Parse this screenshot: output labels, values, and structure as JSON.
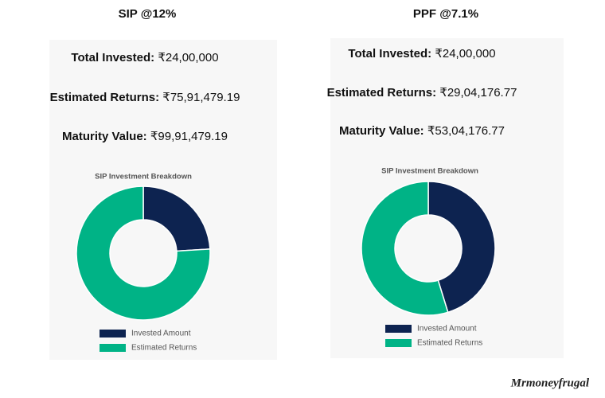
{
  "chart_data": [
    {
      "type": "donut",
      "heading": "SIP @12%",
      "stats": [
        {
          "label": "Total Invested:",
          "value": "₹24,00,000"
        },
        {
          "label": "Estimated Returns:",
          "value": "₹75,91,479.19"
        },
        {
          "label": "Maturity Value:",
          "value": "₹99,91,479.19"
        }
      ],
      "title": "SIP Investment Breakdown",
      "categories": [
        "Invested Amount",
        "Estimated Returns"
      ],
      "values": [
        2400000,
        7591479.19
      ],
      "colors": [
        "#0d2350",
        "#00b386"
      ]
    },
    {
      "type": "donut",
      "heading": "PPF @7.1%",
      "stats": [
        {
          "label": "Total Invested:",
          "value": "₹24,00,000"
        },
        {
          "label": "Estimated Returns:",
          "value": "₹29,04,176.77"
        },
        {
          "label": "Maturity Value:",
          "value": "₹53,04,176.77"
        }
      ],
      "title": "SIP Investment Breakdown",
      "categories": [
        "Invested Amount",
        "Estimated Returns"
      ],
      "values": [
        2400000,
        2904176.77
      ],
      "colors": [
        "#0d2350",
        "#00b386"
      ]
    }
  ],
  "brand": "Mrmoneyfrugal"
}
